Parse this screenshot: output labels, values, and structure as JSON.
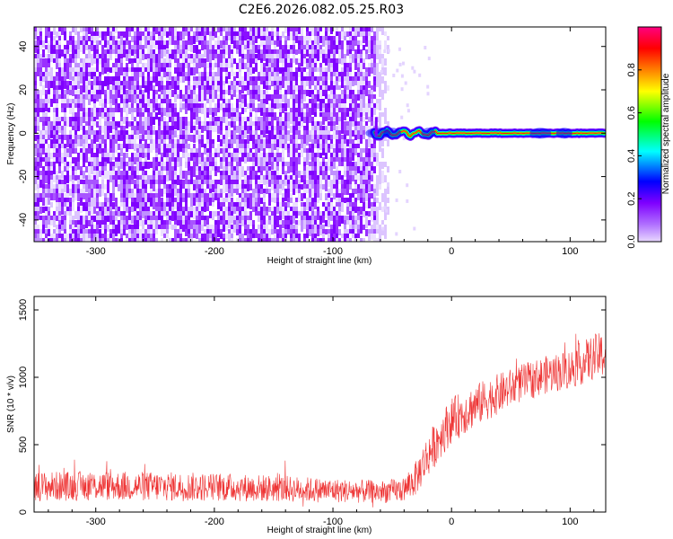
{
  "title": "C2E6.2026.082.05.25.R03",
  "chart_data": [
    {
      "type": "heatmap",
      "xlabel": "Height of straight line (km)",
      "ylabel": "Frequency (Hz)",
      "xlim": [
        -352,
        130
      ],
      "ylim": [
        -50,
        49
      ],
      "xticks": [
        -300,
        -200,
        -100,
        0,
        100
      ],
      "yticks": [
        -40,
        -20,
        0,
        20,
        40
      ],
      "noise_region_x": [
        -352,
        -65
      ],
      "signal_onset_x": -65,
      "signal_frequency": 0,
      "colorbar": {
        "label": "Normalized spectral amplitude",
        "range": [
          0,
          1
        ],
        "ticks": [
          "0.0",
          "0.2",
          "0.4",
          "0.6",
          "0.8"
        ],
        "tick_values": [
          0.0,
          0.2,
          0.4,
          0.6,
          0.8
        ],
        "colors": [
          "#e8d8ff",
          "#7f00ff",
          "#0000ff",
          "#00ffff",
          "#00ff00",
          "#ffff00",
          "#ff8000",
          "#ff0000",
          "#ff00aa"
        ]
      }
    },
    {
      "type": "line",
      "xlabel": "Height of straight line (km)",
      "ylabel": "SNR (10 * v/v)",
      "xlim": [
        -352,
        130
      ],
      "ylim": [
        0,
        1600
      ],
      "xticks": [
        -300,
        -200,
        -100,
        0,
        100
      ],
      "yticks": [
        0,
        500,
        1000,
        1500
      ],
      "color": "#ee3333",
      "series": [
        {
          "name": "SNR",
          "x": [
            -350,
            -300,
            -250,
            -200,
            -150,
            -100,
            -60,
            -40,
            -30,
            -20,
            -10,
            0,
            20,
            40,
            60,
            80,
            100,
            120,
            130
          ],
          "center": [
            190,
            195,
            190,
            185,
            175,
            160,
            150,
            165,
            250,
            420,
            560,
            680,
            790,
            880,
            960,
            1020,
            1060,
            1150,
            1170
          ],
          "spread": [
            110,
            110,
            110,
            105,
            100,
            90,
            85,
            90,
            130,
            160,
            170,
            170,
            160,
            150,
            140,
            140,
            150,
            170,
            170
          ]
        }
      ]
    }
  ]
}
